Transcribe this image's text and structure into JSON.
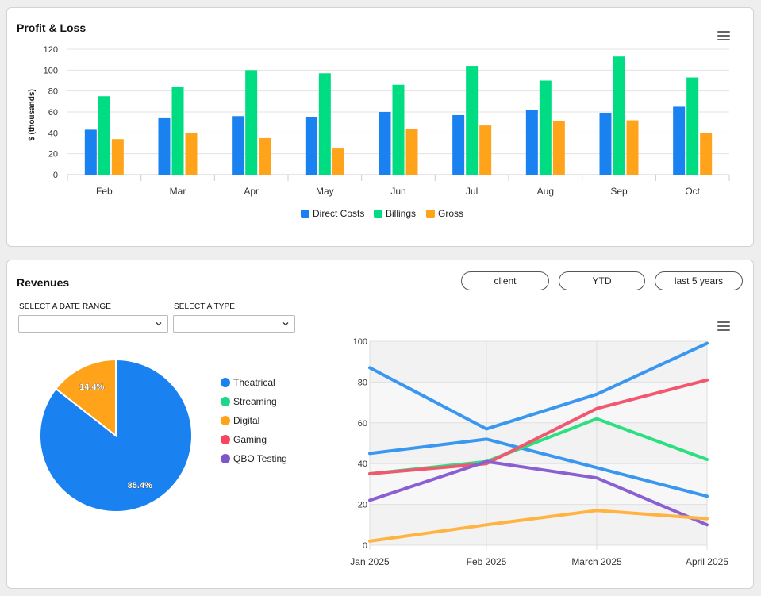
{
  "profit_loss": {
    "title": "Profit & Loss",
    "menu_icon": "hamburger-menu-icon",
    "chart_data": {
      "type": "bar",
      "title": "",
      "xlabel": "",
      "ylabel": "$ (thousands)",
      "ylim": [
        0,
        120
      ],
      "yticks": [
        0,
        20,
        40,
        60,
        80,
        100,
        120
      ],
      "grid": true,
      "legend": "bottom",
      "categories": [
        "Feb",
        "Mar",
        "Apr",
        "May",
        "Jun",
        "Jul",
        "Aug",
        "Sep",
        "Oct"
      ],
      "series": [
        {
          "name": "Direct Costs",
          "color": "#1a82f0",
          "values": [
            43,
            54,
            56,
            55,
            60,
            57,
            62,
            59,
            65
          ]
        },
        {
          "name": "Billings",
          "color": "#00dc82",
          "values": [
            75,
            84,
            100,
            97,
            86,
            104,
            90,
            113,
            93
          ]
        },
        {
          "name": "Gross",
          "color": "#ffa31a",
          "values": [
            34,
            40,
            35,
            25,
            44,
            47,
            51,
            52,
            40
          ]
        }
      ]
    }
  },
  "revenues": {
    "title": "Revenues",
    "buttons": [
      "client",
      "YTD",
      "last 5 years"
    ],
    "filters": {
      "date_range_label": "SELECT A DATE RANGE",
      "date_range_value": "",
      "type_label": "SELECT A TYPE",
      "type_value": ""
    },
    "menu_icon": "hamburger-menu-icon",
    "pie_chart": {
      "type": "pie",
      "legend": "right",
      "slices": [
        {
          "name": "Theatrical",
          "value": 85.4,
          "label": "85.4%",
          "color": "#1a82f0"
        },
        {
          "name": "Streaming",
          "value": 0,
          "label": "",
          "color": "#1ed688"
        },
        {
          "name": "Digital",
          "value": 14.4,
          "label": "14.4%",
          "color": "#ffa31a"
        },
        {
          "name": "Gaming",
          "value": 0,
          "label": "",
          "color": "#f7455f"
        },
        {
          "name": "QBO Testing",
          "value": 0,
          "label": "",
          "color": "#7d56c9"
        }
      ]
    },
    "chart_data": {
      "type": "line",
      "title": "",
      "xlabel": "",
      "ylabel": "",
      "ylim": [
        0,
        100
      ],
      "yticks": [
        "0",
        "20",
        "40",
        "60",
        "80",
        "100"
      ],
      "x": [
        "Jan 2025",
        "Feb 2025",
        "March 2025",
        "April 2025"
      ],
      "grid": true,
      "series": [
        {
          "color": "#3a97f0",
          "values": [
            87,
            57,
            74,
            99
          ]
        },
        {
          "color": "#3a97f0",
          "values": [
            45,
            52,
            38,
            24
          ]
        },
        {
          "color": "#2ce080",
          "values": [
            35,
            41,
            62,
            42
          ]
        },
        {
          "color": "#f25770",
          "values": [
            35,
            40,
            67,
            81
          ]
        },
        {
          "color": "#8a5fd1",
          "values": [
            22,
            41,
            33,
            10
          ]
        },
        {
          "color": "#ffb340",
          "values": [
            2,
            10,
            17,
            13
          ]
        }
      ]
    }
  }
}
